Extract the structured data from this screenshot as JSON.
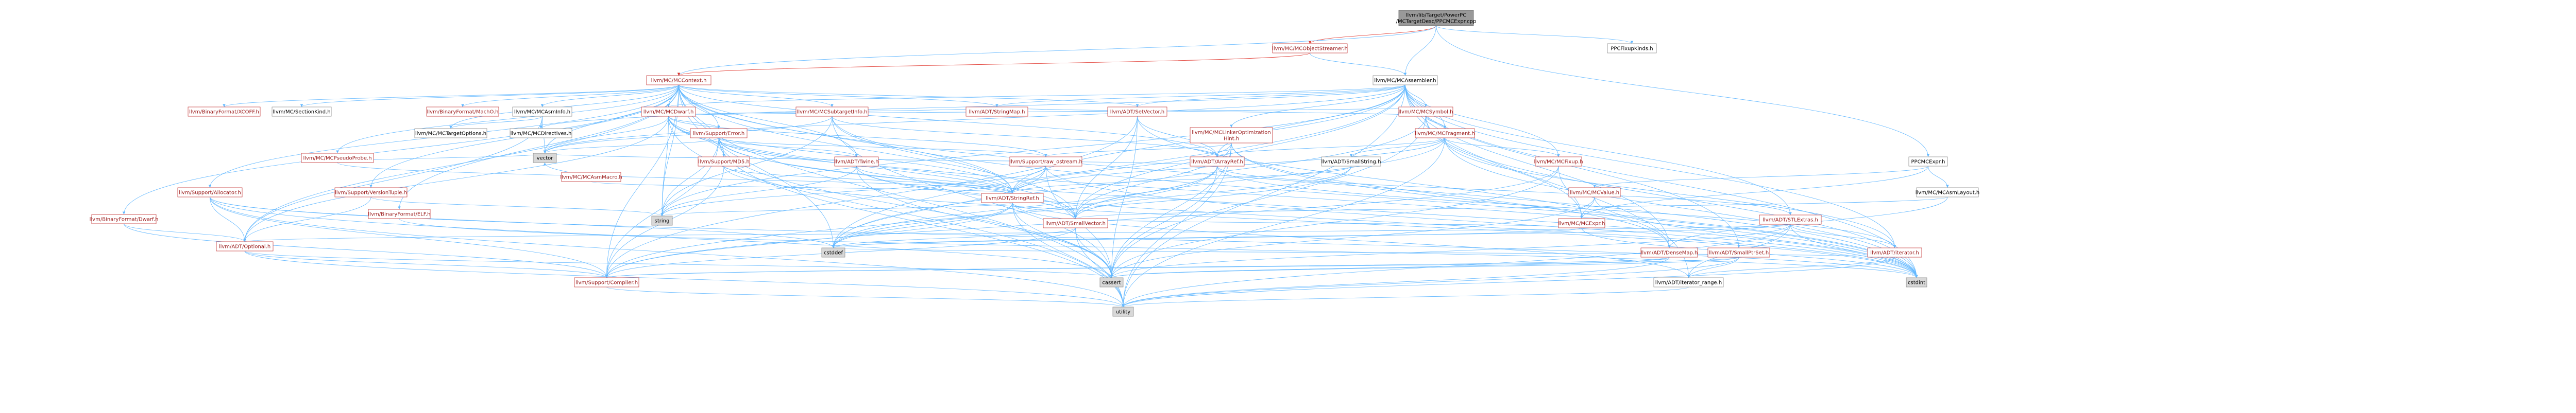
{
  "title": "llvm/lib/Target/PowerPC/MCTargetDesc/PPCMCExpr.cpp",
  "colors": {
    "edge": "#63b8ff",
    "edge_red": "#e0332a",
    "link_text": "#9a1a1a",
    "focus_fill": "#999999",
    "gray_fill": "#d8d8d8",
    "border_gray": "#888888",
    "border_red": "#c43030"
  },
  "nodes": [
    {
      "id": "root",
      "label": "llvm/lib/Target/PowerPC\n/MCTargetDesc/PPCMCExpr.cpp",
      "kind": "focus"
    },
    {
      "id": "mcobjstreamer",
      "label": "llvm/MC/MCObjectStreamer.h",
      "kind": "red"
    },
    {
      "id": "ppcfixupkinds",
      "label": "PPCFixupKinds.h",
      "kind": "plain"
    },
    {
      "id": "mccontext",
      "label": "llvm/MC/MCContext.h",
      "kind": "red"
    },
    {
      "id": "mcassembler",
      "label": "llvm/MC/MCAssembler.h",
      "kind": "plain"
    },
    {
      "id": "coff",
      "label": "llvm/BinaryFormat/XCOFF.h",
      "kind": "red"
    },
    {
      "id": "sectionkind",
      "label": "llvm/MC/SectionKind.h",
      "kind": "plain"
    },
    {
      "id": "macho",
      "label": "llvm/BinaryFormat/MachO.h",
      "kind": "red"
    },
    {
      "id": "mcasminfo",
      "label": "llvm/MC/MCAsmInfo.h",
      "kind": "plain"
    },
    {
      "id": "mcdwarf",
      "label": "llvm/MC/MCDwarf.h",
      "kind": "red"
    },
    {
      "id": "mcsubtargetinfo",
      "label": "llvm/MC/MCSubtargetInfo.h",
      "kind": "red"
    },
    {
      "id": "stringmap",
      "label": "llvm/ADT/StringMap.h",
      "kind": "red"
    },
    {
      "id": "smallvector",
      "label": "llvm/ADT/SetVector.h",
      "kind": "red"
    },
    {
      "id": "mcsymbol",
      "label": "llvm/MC/MCSymbol.h",
      "kind": "red"
    },
    {
      "id": "mctargetoptions",
      "label": "llvm/MC/MCTargetOptions.h",
      "kind": "plain"
    },
    {
      "id": "mcdirectives",
      "label": "llvm/MC/MCDirectives.h",
      "kind": "plain"
    },
    {
      "id": "supporterror",
      "label": "llvm/Support/Error.h",
      "kind": "red"
    },
    {
      "id": "mclinkeropt",
      "label": "llvm/MC/MCLinkerOptimization\nHint.h",
      "kind": "red"
    },
    {
      "id": "mcfragment",
      "label": "llvm/MC/MCFragment.h",
      "kind": "red"
    },
    {
      "id": "mcpseudoprobe",
      "label": "llvm/MC/MCPseudoProbe.h",
      "kind": "red"
    },
    {
      "id": "supportmd5",
      "label": "llvm/Support/MD5.h",
      "kind": "red"
    },
    {
      "id": "twine",
      "label": "llvm/ADT/Twine.h",
      "kind": "red"
    },
    {
      "id": "rawostream",
      "label": "llvm/Support/raw_ostream.h",
      "kind": "red"
    },
    {
      "id": "arrayref",
      "label": "llvm/ADT/ArrayRef.h",
      "kind": "red"
    },
    {
      "id": "smallstring",
      "label": "llvm/ADT/SmallString.h",
      "kind": "plain"
    },
    {
      "id": "mcfixup",
      "label": "llvm/MC/MCFixup.h",
      "kind": "red"
    },
    {
      "id": "ppcmcexpr",
      "label": "PPCMCExpr.h",
      "kind": "plain"
    },
    {
      "id": "mcasmmacro",
      "label": "llvm/MC/MCAsmMacro.h",
      "kind": "red"
    },
    {
      "id": "supportallocator",
      "label": "llvm/Support/Allocator.h",
      "kind": "red"
    },
    {
      "id": "versiontuple",
      "label": "llvm/Support/VersionTuple.h",
      "kind": "red"
    },
    {
      "id": "elf",
      "label": "llvm/BinaryFormat/ELF.h",
      "kind": "red"
    },
    {
      "id": "dwarf",
      "label": "llvm/BinaryFormat/Dwarf.h",
      "kind": "red"
    },
    {
      "id": "stringref",
      "label": "llvm/ADT/StringRef.h",
      "kind": "red"
    },
    {
      "id": "mcvalue",
      "label": "llvm/MC/MCValue.h",
      "kind": "red"
    },
    {
      "id": "mcasmlayout",
      "label": "llvm/MC/MCAsmLayout.h",
      "kind": "plain"
    },
    {
      "id": "stlextras",
      "label": "llvm/ADT/STLExtras.h",
      "kind": "red"
    },
    {
      "id": "mcexpr",
      "label": "llvm/MC/MCExpr.h",
      "kind": "red"
    },
    {
      "id": "adtsmallvector",
      "label": "llvm/ADT/SmallVector.h",
      "kind": "red"
    },
    {
      "id": "vector",
      "label": "vector",
      "kind": "gray"
    },
    {
      "id": "string",
      "label": "string",
      "kind": "gray"
    },
    {
      "id": "optional",
      "label": "llvm/ADT/Optional.h",
      "kind": "red"
    },
    {
      "id": "cstddef",
      "label": "cstddef",
      "kind": "gray"
    },
    {
      "id": "densemap",
      "label": "llvm/ADT/DenseMap.h",
      "kind": "red"
    },
    {
      "id": "smallptrset",
      "label": "llvm/ADT/SmallPtrSet.h",
      "kind": "red"
    },
    {
      "id": "iterator",
      "label": "llvm/ADT/iterator.h",
      "kind": "red"
    },
    {
      "id": "compiler",
      "label": "llvm/Support/Compiler.h",
      "kind": "red"
    },
    {
      "id": "cassert",
      "label": "cassert",
      "kind": "gray"
    },
    {
      "id": "iteratorrange",
      "label": "llvm/ADT/iterator_range.h",
      "kind": "plain"
    },
    {
      "id": "cstdint",
      "label": "cstdint",
      "kind": "gray"
    },
    {
      "id": "utility",
      "label": "utility",
      "kind": "gray"
    }
  ],
  "edges": [
    [
      "root",
      "mcobjstreamer"
    ],
    [
      "root",
      "ppcfixupkinds"
    ],
    [
      "root",
      "mcassembler"
    ],
    [
      "root",
      "ppcmcexpr"
    ],
    [
      "root",
      "mccontext"
    ],
    [
      "mcobjstreamer",
      "mcassembler"
    ],
    [
      "mcobjstreamer",
      "mccontext"
    ],
    [
      "mccontext",
      "coff"
    ],
    [
      "mccontext",
      "sectionkind"
    ],
    [
      "mccontext",
      "macho"
    ],
    [
      "mccontext",
      "mcasminfo"
    ],
    [
      "mccontext",
      "mcdwarf"
    ],
    [
      "mccontext",
      "mcsubtargetinfo"
    ],
    [
      "mccontext",
      "stringmap"
    ],
    [
      "mccontext",
      "smallvector"
    ],
    [
      "mccontext",
      "mcpseudoprobe"
    ],
    [
      "mccontext",
      "supportallocator"
    ],
    [
      "mccontext",
      "versiontuple"
    ],
    [
      "mccontext",
      "elf"
    ],
    [
      "mccontext",
      "dwarf"
    ],
    [
      "mccontext",
      "twine"
    ],
    [
      "mccontext",
      "stringref"
    ],
    [
      "mccontext",
      "adtsmallvector"
    ],
    [
      "mccontext",
      "mctargetoptions"
    ],
    [
      "mccontext",
      "supporterror"
    ],
    [
      "mccontext",
      "vector"
    ],
    [
      "mccontext",
      "string"
    ],
    [
      "mccontext",
      "optional"
    ],
    [
      "mccontext",
      "cstddef"
    ],
    [
      "mccontext",
      "cstdint"
    ],
    [
      "mccontext",
      "utility"
    ],
    [
      "mccontext",
      "compiler"
    ],
    [
      "mccontext",
      "arrayref"
    ],
    [
      "mccontext",
      "supportmd5"
    ],
    [
      "mcassembler",
      "mcsymbol"
    ],
    [
      "mcassembler",
      "mcfragment"
    ],
    [
      "mcassembler",
      "mclinkeropt"
    ],
    [
      "mcassembler",
      "smallvector"
    ],
    [
      "mcassembler",
      "stringref"
    ],
    [
      "mcassembler",
      "adtsmallvector"
    ],
    [
      "mcassembler",
      "mcfixup"
    ],
    [
      "mcassembler",
      "mcdirectives"
    ],
    [
      "mcassembler",
      "mcdwarf"
    ],
    [
      "mcassembler",
      "arrayref"
    ],
    [
      "mcassembler",
      "stringmap"
    ],
    [
      "mcassembler",
      "iteratorrange"
    ],
    [
      "mcassembler",
      "vector"
    ],
    [
      "mcassembler",
      "string"
    ],
    [
      "mcassembler",
      "cstddef"
    ],
    [
      "mcassembler",
      "cstdint"
    ],
    [
      "mcassembler",
      "utility"
    ],
    [
      "mcassembler",
      "densemap"
    ],
    [
      "mcassembler",
      "smallptrset"
    ],
    [
      "mcassembler",
      "stlextras"
    ],
    [
      "mcassembler",
      "iterator"
    ],
    [
      "mcasminfo",
      "mcdirectives"
    ],
    [
      "mcasminfo",
      "mctargetoptions"
    ],
    [
      "mcasminfo",
      "vector"
    ],
    [
      "mcasminfo",
      "optional"
    ],
    [
      "mcdwarf",
      "supporterror"
    ],
    [
      "mcdwarf",
      "supportmd5"
    ],
    [
      "mcdwarf",
      "stringmap"
    ],
    [
      "mcdwarf",
      "mcsymbol"
    ],
    [
      "mcdwarf",
      "stringref"
    ],
    [
      "mcdwarf",
      "vector"
    ],
    [
      "mcdwarf",
      "string"
    ],
    [
      "mcdwarf",
      "cstdint"
    ],
    [
      "mcdwarf",
      "utility"
    ],
    [
      "mcdwarf",
      "optional"
    ],
    [
      "mcdwarf",
      "adtsmallvector"
    ],
    [
      "mcdwarf",
      "rawostream"
    ],
    [
      "mcsubtargetinfo",
      "arrayref"
    ],
    [
      "mcsubtargetinfo",
      "stringref"
    ],
    [
      "mcsubtargetinfo",
      "string"
    ],
    [
      "mcsubtargetinfo",
      "cassert"
    ],
    [
      "mcsubtargetinfo",
      "cstdint"
    ],
    [
      "mcsubtargetinfo",
      "vector"
    ],
    [
      "smallvector",
      "arrayref"
    ],
    [
      "smallvector",
      "adtsmallvector"
    ],
    [
      "smallvector",
      "densemap"
    ],
    [
      "smallvector",
      "compiler"
    ],
    [
      "smallvector",
      "cassert"
    ],
    [
      "mcsymbol",
      "mcfragment"
    ],
    [
      "mcsymbol",
      "mcexpr"
    ],
    [
      "mcsymbol",
      "stringmap"
    ],
    [
      "mcsymbol",
      "cstddef"
    ],
    [
      "mcsymbol",
      "cstdint"
    ],
    [
      "mcsymbol",
      "cassert"
    ],
    [
      "mcfragment",
      "mcfixup"
    ],
    [
      "mcfragment",
      "smallstring"
    ],
    [
      "mcfragment",
      "arrayref"
    ],
    [
      "mcfragment",
      "iterator"
    ],
    [
      "mcfragment",
      "stringref"
    ],
    [
      "mcfragment",
      "adtsmallvector"
    ],
    [
      "mcfragment",
      "cstdint"
    ],
    [
      "mcfragment",
      "utility"
    ],
    [
      "supporterror",
      "string"
    ],
    [
      "supporterror",
      "vector"
    ],
    [
      "supporterror",
      "cassert"
    ],
    [
      "supporterror",
      "cstdint"
    ],
    [
      "supporterror",
      "utility"
    ],
    [
      "supporterror",
      "twine"
    ],
    [
      "supporterror",
      "stringref"
    ],
    [
      "supporterror",
      "compiler"
    ],
    [
      "supporterror",
      "adtsmallvector"
    ],
    [
      "supporterror",
      "rawostream"
    ],
    [
      "mclinkeropt",
      "stringref"
    ],
    [
      "mclinkeropt",
      "adtsmallvector"
    ],
    [
      "mclinkeropt",
      "rawostream"
    ],
    [
      "mclinkeropt",
      "cassert"
    ],
    [
      "mclinkeropt",
      "cstdint"
    ],
    [
      "mclinkeropt",
      "utility"
    ],
    [
      "mclinkeropt",
      "densemap"
    ],
    [
      "mcpseudoprobe",
      "vector"
    ],
    [
      "mcpseudoprobe",
      "stringref"
    ],
    [
      "supportmd5",
      "stringref"
    ],
    [
      "supportmd5",
      "cstdint"
    ],
    [
      "supportmd5",
      "compiler"
    ],
    [
      "twine",
      "stringref"
    ],
    [
      "twine",
      "string"
    ],
    [
      "twine",
      "cassert"
    ],
    [
      "twine",
      "cstdint"
    ],
    [
      "twine",
      "adtsmallvector"
    ],
    [
      "rawostream",
      "stringref"
    ],
    [
      "rawostream",
      "cassert"
    ],
    [
      "rawostream",
      "cstddef"
    ],
    [
      "rawostream",
      "cstdint"
    ],
    [
      "rawostream",
      "string"
    ],
    [
      "arrayref",
      "adtsmallvector"
    ],
    [
      "arrayref",
      "stlextras"
    ],
    [
      "arrayref",
      "compiler"
    ],
    [
      "arrayref",
      "vector"
    ],
    [
      "arrayref",
      "cstddef"
    ],
    [
      "arrayref",
      "cassert"
    ],
    [
      "arrayref",
      "iterator"
    ],
    [
      "smallstring",
      "stringref"
    ],
    [
      "smallstring",
      "adtsmallvector"
    ],
    [
      "smallstring",
      "cstddef"
    ],
    [
      "mcfixup",
      "mcexpr"
    ],
    [
      "mcfixup",
      "cassert"
    ],
    [
      "mcfixup",
      "compiler"
    ],
    [
      "ppcmcexpr",
      "mcasmlayout"
    ],
    [
      "ppcmcexpr",
      "mcexpr"
    ],
    [
      "ppcmcexpr",
      "mcvalue"
    ],
    [
      "mcvalue",
      "mcexpr"
    ],
    [
      "mcvalue",
      "cassert"
    ],
    [
      "mcvalue",
      "cstdint"
    ],
    [
      "mcasmlayout",
      "adtsmallvector"
    ],
    [
      "mcasmlayout",
      "densemap"
    ],
    [
      "mcasmmacro",
      "stringref"
    ],
    [
      "mcasmmacro",
      "vector"
    ],
    [
      "supportallocator",
      "optional"
    ],
    [
      "supportallocator",
      "compiler"
    ],
    [
      "supportallocator",
      "cassert"
    ],
    [
      "supportallocator",
      "cstddef"
    ],
    [
      "supportallocator",
      "cstdint"
    ],
    [
      "supportallocator",
      "utility"
    ],
    [
      "versiontuple",
      "optional"
    ],
    [
      "versiontuple",
      "string"
    ],
    [
      "elf",
      "cstdint"
    ],
    [
      "elf",
      "cstring"
    ],
    [
      "dwarf",
      "optional"
    ],
    [
      "dwarf",
      "compiler"
    ],
    [
      "stringref",
      "compiler"
    ],
    [
      "stringref",
      "iteratorrange"
    ],
    [
      "stringref",
      "cassert"
    ],
    [
      "stringref",
      "cstddef"
    ],
    [
      "stringref",
      "string"
    ],
    [
      "stringref",
      "utility"
    ],
    [
      "stringref",
      "adtsmallvector"
    ],
    [
      "stlextras",
      "optional"
    ],
    [
      "stlextras",
      "iterator"
    ],
    [
      "stlextras",
      "iteratorrange"
    ],
    [
      "stlextras",
      "cstddef"
    ],
    [
      "stlextras",
      "cstdint"
    ],
    [
      "stlextras",
      "cassert"
    ],
    [
      "stlextras",
      "utility"
    ],
    [
      "mcexpr",
      "adtsmallvector"
    ],
    [
      "mcexpr",
      "cstdint"
    ],
    [
      "mcexpr",
      "cstddef"
    ],
    [
      "adtsmallvector",
      "compiler"
    ],
    [
      "adtsmallvector",
      "cstddef"
    ],
    [
      "adtsmallvector",
      "cassert"
    ],
    [
      "adtsmallvector",
      "utility"
    ],
    [
      "densemap",
      "compiler"
    ],
    [
      "densemap",
      "cassert"
    ],
    [
      "densemap",
      "utility"
    ],
    [
      "smallptrset",
      "compiler"
    ],
    [
      "smallptrset",
      "cassert"
    ],
    [
      "smallptrset",
      "utility"
    ],
    [
      "smallptrset",
      "iteratorrange"
    ],
    [
      "iterator",
      "iteratorrange"
    ],
    [
      "iterator",
      "cstddef"
    ],
    [
      "iterator",
      "utility"
    ],
    [
      "iteratorrange",
      "utility"
    ],
    [
      "optional",
      "compiler"
    ],
    [
      "optional",
      "cassert"
    ],
    [
      "optional",
      "utility"
    ],
    [
      "compiler",
      "utility"
    ]
  ]
}
